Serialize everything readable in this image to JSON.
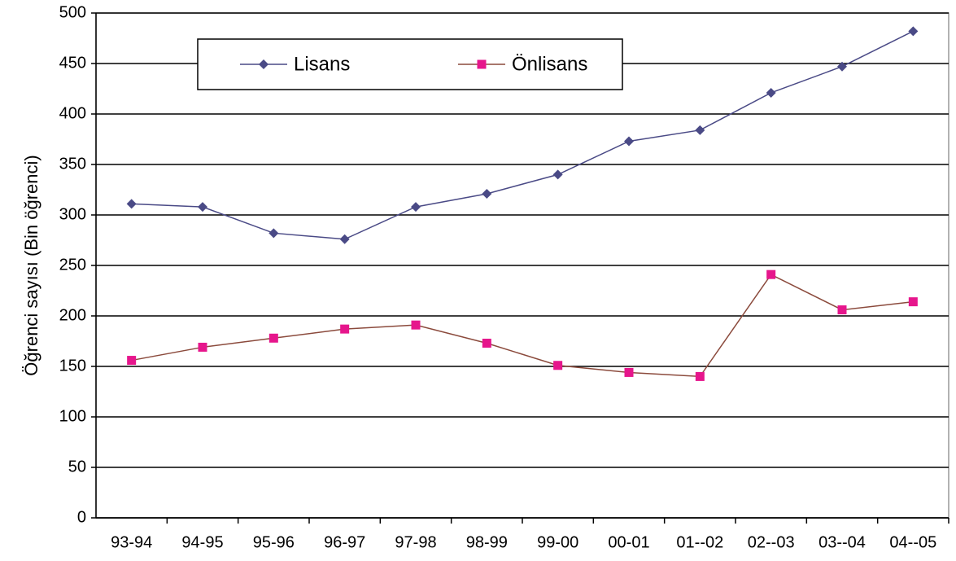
{
  "chart_data": {
    "type": "line",
    "ylabel": "Öğrenci sayısı (Bin öğrenci)",
    "categories": [
      "93-94",
      "94-95",
      "95-96",
      "96-97",
      "97-98",
      "98-99",
      "99-00",
      "00-01",
      "01--02",
      "02--03",
      "03--04",
      "04--05"
    ],
    "series": [
      {
        "name": "Lisans",
        "color": "#4a4a86",
        "marker": "diamond",
        "marker_color": "#4a4a86",
        "values": [
          311,
          308,
          282,
          276,
          308,
          321,
          340,
          373,
          384,
          421,
          447,
          482
        ]
      },
      {
        "name": "Önlisans",
        "color": "#8b4a3c",
        "marker": "square",
        "marker_color": "#e6168c",
        "values": [
          156,
          169,
          178,
          187,
          191,
          173,
          151,
          144,
          140,
          241,
          206,
          214
        ]
      }
    ],
    "ylim": [
      0,
      500
    ],
    "yticks": [
      0,
      50,
      100,
      150,
      200,
      250,
      300,
      350,
      400,
      450,
      500
    ],
    "grid": true,
    "legend": "top-left"
  }
}
